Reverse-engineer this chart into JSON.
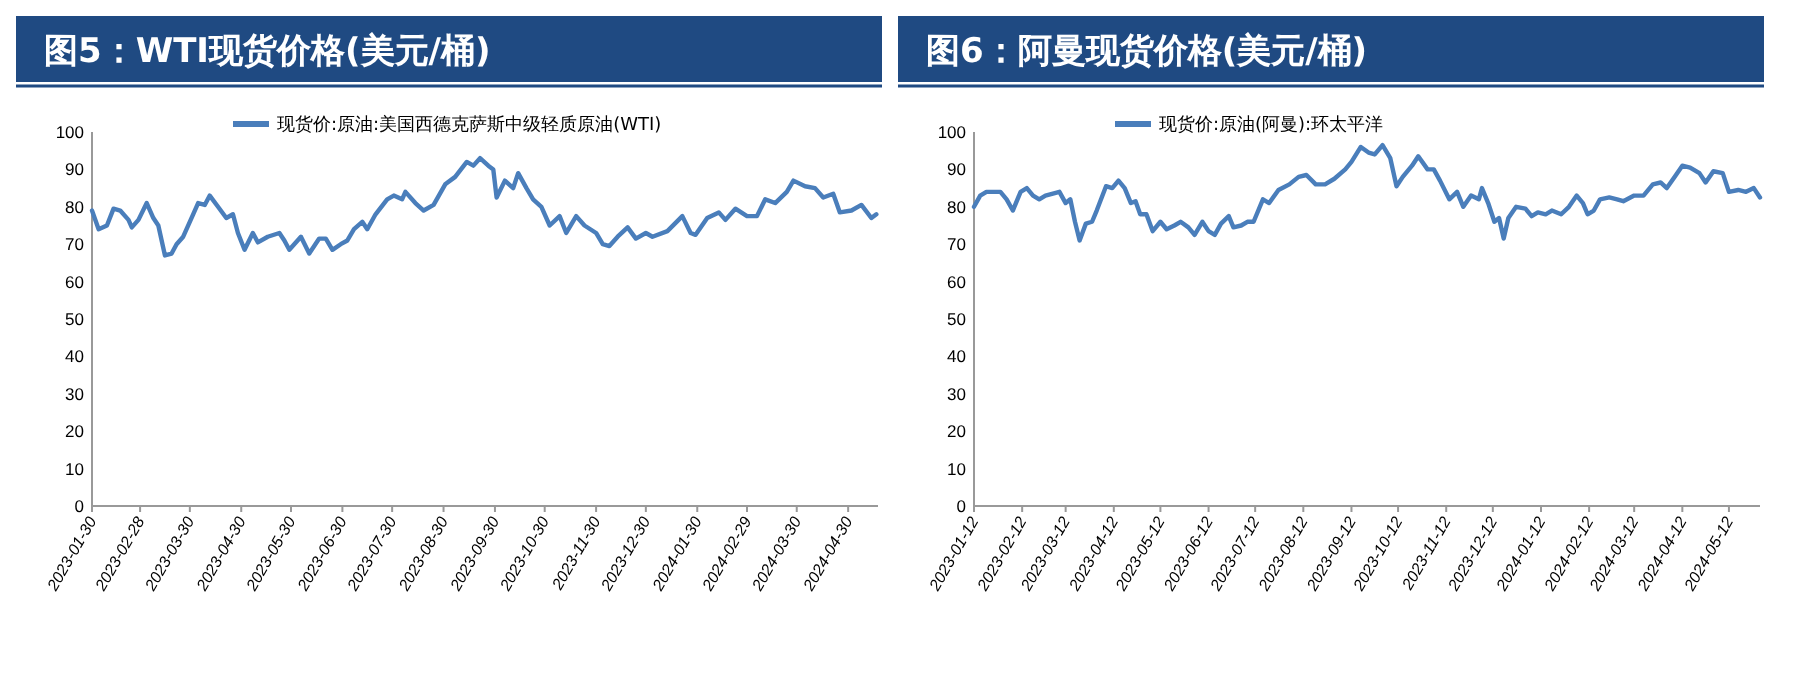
{
  "chart_data": [
    {
      "type": "line",
      "title": "图5：WTI现货价格(美元/桶)",
      "legend": "top",
      "grid": false,
      "marker": "none",
      "line_style": "solid",
      "xlim": [
        "2023-01-30",
        "2024-05-18"
      ],
      "ylim": [
        0,
        100
      ],
      "yticks": [
        0,
        10,
        20,
        30,
        40,
        50,
        60,
        70,
        80,
        90,
        100
      ],
      "xticks": [
        "2023-01-30",
        "2023-02-28",
        "2023-03-30",
        "2023-04-30",
        "2023-05-30",
        "2023-06-30",
        "2023-07-30",
        "2023-08-30",
        "2023-09-30",
        "2023-10-30",
        "2023-11-30",
        "2023-12-30",
        "2024-01-30",
        "2024-02-29",
        "2024-03-30",
        "2024-04-30"
      ],
      "series": [
        {
          "name": "现货价:原油:美国西德克萨斯中级轻质原油(WTI)",
          "color": "#4a7ebb",
          "x": [
            "2023-01-30",
            "2023-02-03",
            "2023-02-08",
            "2023-02-12",
            "2023-02-16",
            "2023-02-21",
            "2023-02-23",
            "2023-02-27",
            "2023-03-04",
            "2023-03-08",
            "2023-03-11",
            "2023-03-15",
            "2023-03-19",
            "2023-03-22",
            "2023-03-26",
            "2023-04-01",
            "2023-04-04",
            "2023-04-08",
            "2023-04-11",
            "2023-04-16",
            "2023-04-21",
            "2023-04-25",
            "2023-04-28",
            "2023-05-02",
            "2023-05-07",
            "2023-05-10",
            "2023-05-16",
            "2023-05-23",
            "2023-05-26",
            "2023-05-29",
            "2023-06-05",
            "2023-06-10",
            "2023-06-16",
            "2023-06-20",
            "2023-06-24",
            "2023-06-29",
            "2023-07-03",
            "2023-07-07",
            "2023-07-12",
            "2023-07-15",
            "2023-07-20",
            "2023-07-27",
            "2023-07-31",
            "2023-08-05",
            "2023-08-07",
            "2023-08-13",
            "2023-08-18",
            "2023-08-24",
            "2023-08-31",
            "2023-09-06",
            "2023-09-13",
            "2023-09-17",
            "2023-09-21",
            "2023-09-26",
            "2023-09-29",
            "2023-10-01",
            "2023-10-06",
            "2023-10-11",
            "2023-10-14",
            "2023-10-19",
            "2023-10-23",
            "2023-10-28",
            "2023-11-02",
            "2023-11-08",
            "2023-11-12",
            "2023-11-18",
            "2023-11-23",
            "2023-11-30",
            "2023-12-04",
            "2023-12-08",
            "2023-12-13",
            "2023-12-19",
            "2023-12-24",
            "2023-12-30",
            "2024-01-03",
            "2024-01-12",
            "2024-01-21",
            "2024-01-26",
            "2024-01-29",
            "2024-02-05",
            "2024-02-12",
            "2024-02-16",
            "2024-02-22",
            "2024-02-29",
            "2024-03-06",
            "2024-03-11",
            "2024-03-17",
            "2024-03-24",
            "2024-03-28",
            "2024-04-04",
            "2024-04-10",
            "2024-04-15",
            "2024-04-21",
            "2024-04-25",
            "2024-05-02",
            "2024-05-08",
            "2024-05-14",
            "2024-05-17"
          ],
          "values": [
            79,
            74,
            75,
            79.5,
            79,
            76.5,
            74.5,
            76.5,
            81,
            77,
            75,
            67,
            67.5,
            70,
            72,
            78,
            81,
            80.5,
            83,
            80,
            77,
            78,
            73,
            68.5,
            73,
            70.5,
            72,
            73,
            71,
            68.5,
            72,
            67.5,
            71.5,
            71.5,
            68.5,
            70,
            71,
            74,
            76,
            74,
            78,
            82,
            83,
            82,
            84,
            81,
            79,
            80.5,
            86,
            88,
            92,
            91,
            93,
            91,
            90,
            82.5,
            87,
            85,
            89,
            85,
            82,
            80,
            75,
            77.5,
            73,
            77.5,
            75,
            73,
            70,
            69.5,
            72,
            74.5,
            71.5,
            73,
            72,
            73.5,
            77.5,
            73,
            72.5,
            77,
            78.5,
            76.5,
            79.5,
            77.5,
            77.5,
            82,
            81,
            84,
            87,
            85.5,
            85,
            82.5,
            83.5,
            78.5,
            79,
            80.5,
            77,
            78
          ]
        }
      ]
    },
    {
      "type": "line",
      "title": "图6：阿曼现货价格(美元/桶)",
      "legend": "top",
      "grid": false,
      "marker": "none",
      "line_style": "solid",
      "xlim": [
        "2023-01-12",
        "2024-06-01"
      ],
      "ylim": [
        0,
        100
      ],
      "yticks": [
        0,
        10,
        20,
        30,
        40,
        50,
        60,
        70,
        80,
        90,
        100
      ],
      "xticks": [
        "2023-01-12",
        "2023-02-12",
        "2023-03-12",
        "2023-04-12",
        "2023-05-12",
        "2023-06-12",
        "2023-07-12",
        "2023-08-12",
        "2023-09-12",
        "2023-10-12",
        "2023-11-12",
        "2023-12-12",
        "2024-01-12",
        "2024-02-12",
        "2024-03-12",
        "2024-04-12",
        "2024-05-12"
      ],
      "series": [
        {
          "name": "现货价:原油(阿曼):环太平洋",
          "color": "#4a7ebb",
          "x": [
            "2023-01-12",
            "2023-01-16",
            "2023-01-20",
            "2023-01-29",
            "2023-02-02",
            "2023-02-06",
            "2023-02-11",
            "2023-02-15",
            "2023-02-19",
            "2023-02-23",
            "2023-02-27",
            "2023-03-08",
            "2023-03-12",
            "2023-03-15",
            "2023-03-18",
            "2023-03-21",
            "2023-03-25",
            "2023-03-29",
            "2023-04-01",
            "2023-04-07",
            "2023-04-11",
            "2023-04-15",
            "2023-04-19",
            "2023-04-23",
            "2023-04-26",
            "2023-04-29",
            "2023-05-03",
            "2023-05-07",
            "2023-05-12",
            "2023-05-16",
            "2023-05-21",
            "2023-05-25",
            "2023-05-30",
            "2023-06-03",
            "2023-06-08",
            "2023-06-12",
            "2023-06-16",
            "2023-06-20",
            "2023-06-25",
            "2023-06-28",
            "2023-07-03",
            "2023-07-07",
            "2023-07-11",
            "2023-07-17",
            "2023-07-21",
            "2023-07-27",
            "2023-08-03",
            "2023-08-09",
            "2023-08-14",
            "2023-08-20",
            "2023-08-26",
            "2023-09-01",
            "2023-09-08",
            "2023-09-12",
            "2023-09-18",
            "2023-09-23",
            "2023-09-27",
            "2023-10-02",
            "2023-10-07",
            "2023-10-11",
            "2023-10-15",
            "2023-10-21",
            "2023-10-25",
            "2023-10-31",
            "2023-11-04",
            "2023-11-08",
            "2023-11-14",
            "2023-11-19",
            "2023-11-23",
            "2023-11-28",
            "2023-12-03",
            "2023-12-05",
            "2023-12-09",
            "2023-12-13",
            "2023-12-16",
            "2023-12-19",
            "2023-12-22",
            "2023-12-27",
            "2024-01-02",
            "2024-01-06",
            "2024-01-10",
            "2024-01-15",
            "2024-01-19",
            "2024-01-25",
            "2024-01-30",
            "2024-02-04",
            "2024-02-08",
            "2024-02-11",
            "2024-02-15",
            "2024-02-19",
            "2024-02-25",
            "2024-03-01",
            "2024-03-05",
            "2024-03-12",
            "2024-03-18",
            "2024-03-24",
            "2024-03-29",
            "2024-04-02",
            "2024-04-07",
            "2024-04-12",
            "2024-04-17",
            "2024-04-23",
            "2024-04-27",
            "2024-05-02",
            "2024-05-08",
            "2024-05-12",
            "2024-05-18",
            "2024-05-23",
            "2024-05-28",
            "2024-06-01"
          ],
          "values": [
            80,
            83,
            84,
            84,
            82,
            79,
            84,
            85,
            83,
            82,
            83,
            84,
            81,
            82,
            76,
            71,
            75.5,
            76,
            79,
            85.5,
            85,
            87,
            85,
            81,
            81.5,
            78,
            78,
            73.5,
            76,
            74,
            75,
            76,
            74.5,
            72.5,
            76,
            73.5,
            72.5,
            75.5,
            77.5,
            74.5,
            75,
            76,
            76,
            82,
            81,
            84.5,
            86,
            88,
            88.5,
            86,
            86,
            87.5,
            90,
            92,
            96,
            94.5,
            94,
            96.5,
            93,
            85.5,
            88,
            91,
            93.5,
            90,
            90,
            87,
            82,
            84,
            80,
            83,
            82,
            85,
            81,
            76,
            77,
            71.5,
            77,
            80,
            79.5,
            77.5,
            78.5,
            78,
            79,
            78,
            80,
            83,
            81,
            78,
            79,
            82,
            82.5,
            82,
            81.5,
            83,
            83,
            86,
            86.5,
            85,
            88,
            91,
            90.5,
            89,
            86.5,
            89.5,
            89,
            84,
            84.5,
            84,
            85,
            82.5
          ]
        }
      ]
    }
  ]
}
